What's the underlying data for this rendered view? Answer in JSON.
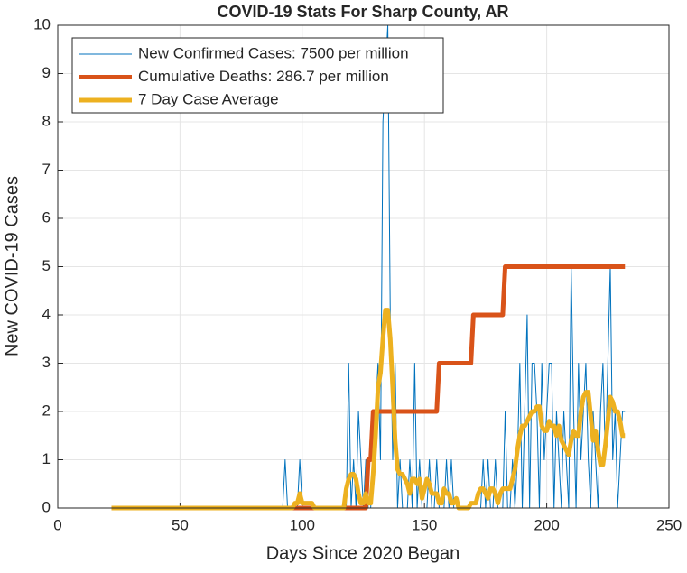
{
  "chart_data": {
    "type": "line",
    "title": "COVID-19 Stats For Sharp County, AR",
    "xlabel": "Days Since 2020 Began",
    "ylabel": "New COVID-19 Cases",
    "xlim": [
      0,
      250
    ],
    "xticks": [
      0,
      50,
      100,
      150,
      200,
      250
    ],
    "ylim": [
      0,
      10
    ],
    "yticks": [
      0,
      1,
      2,
      3,
      4,
      5,
      6,
      7,
      8,
      9,
      10
    ],
    "grid": true,
    "legend": "northwest",
    "x": [
      22,
      23,
      24,
      25,
      26,
      27,
      28,
      29,
      30,
      31,
      32,
      33,
      34,
      35,
      36,
      37,
      38,
      39,
      40,
      41,
      42,
      43,
      44,
      45,
      46,
      47,
      48,
      49,
      50,
      51,
      52,
      53,
      54,
      55,
      56,
      57,
      58,
      59,
      60,
      61,
      62,
      63,
      64,
      65,
      66,
      67,
      68,
      69,
      70,
      71,
      72,
      73,
      74,
      75,
      76,
      77,
      78,
      79,
      80,
      81,
      82,
      83,
      84,
      85,
      86,
      87,
      88,
      89,
      90,
      91,
      92,
      93,
      94,
      95,
      96,
      97,
      98,
      99,
      100,
      101,
      102,
      103,
      104,
      105,
      106,
      107,
      108,
      109,
      110,
      111,
      112,
      113,
      114,
      115,
      116,
      117,
      118,
      119,
      120,
      121,
      122,
      123,
      124,
      125,
      126,
      127,
      128,
      129,
      130,
      131,
      132,
      133,
      134,
      135,
      136,
      137,
      138,
      139,
      140,
      141,
      142,
      143,
      144,
      145,
      146,
      147,
      148,
      149,
      150,
      151,
      152,
      153,
      154,
      155,
      156,
      157,
      158,
      159,
      160,
      161,
      162,
      163,
      164,
      165,
      166,
      167,
      168,
      169,
      170,
      171,
      172,
      173,
      174,
      175,
      176,
      177,
      178,
      179,
      180,
      181,
      182,
      183,
      184,
      185,
      186,
      187,
      188,
      189,
      190,
      191,
      192,
      193,
      194,
      195,
      196,
      197,
      198,
      199,
      200,
      201,
      202,
      203,
      204,
      205,
      206,
      207,
      208,
      209,
      210,
      211,
      212,
      213,
      214,
      215,
      216,
      217,
      218,
      219,
      220,
      221,
      222,
      223,
      224,
      225,
      226,
      227,
      228,
      229,
      230,
      231,
      232
    ],
    "series": [
      {
        "name": "New Confirmed Cases: 7500 per million",
        "color": "#0072BD",
        "width": 1,
        "values": [
          0,
          0,
          0,
          0,
          0,
          0,
          0,
          0,
          0,
          0,
          0,
          0,
          0,
          0,
          0,
          0,
          0,
          0,
          0,
          0,
          0,
          0,
          0,
          0,
          0,
          0,
          0,
          0,
          0,
          0,
          0,
          0,
          0,
          0,
          0,
          0,
          0,
          0,
          0,
          0,
          0,
          0,
          0,
          0,
          0,
          0,
          0,
          0,
          0,
          0,
          0,
          0,
          0,
          0,
          0,
          0,
          0,
          0,
          0,
          0,
          0,
          0,
          0,
          0,
          0,
          0,
          0,
          0,
          0,
          0,
          0,
          1,
          0,
          0,
          0,
          0,
          0,
          1,
          0,
          0,
          0,
          0,
          0,
          0,
          0,
          0,
          0,
          0,
          0,
          0,
          0,
          0,
          0,
          0,
          0,
          0,
          0,
          3,
          0,
          1,
          0,
          2,
          1,
          0,
          1,
          0,
          0,
          1,
          2,
          3,
          1,
          8,
          9,
          10,
          4,
          1,
          3,
          0,
          1,
          0,
          0,
          0,
          1,
          0,
          3,
          0,
          1,
          0,
          0,
          0,
          1,
          0,
          0,
          1,
          0,
          0,
          0,
          1,
          0,
          1,
          0,
          0,
          0,
          0,
          0,
          0,
          0,
          0,
          0,
          0,
          0,
          0,
          1,
          0,
          1,
          0,
          0,
          1,
          0,
          0,
          0,
          2,
          0,
          0,
          1,
          0,
          1,
          3,
          0,
          2,
          4,
          0,
          3,
          3,
          2,
          0,
          3,
          1,
          2,
          3,
          3,
          0,
          2,
          1,
          0,
          2,
          1,
          0,
          5,
          2,
          0,
          3,
          1,
          2,
          3,
          1,
          0,
          2,
          1,
          0,
          2,
          3,
          1,
          3,
          5,
          1,
          2,
          0,
          1,
          2,
          2
        ]
      },
      {
        "name": "Cumulative Deaths: 286.7 per million",
        "color": "#D95319",
        "width": 5,
        "values": [
          0,
          0,
          0,
          0,
          0,
          0,
          0,
          0,
          0,
          0,
          0,
          0,
          0,
          0,
          0,
          0,
          0,
          0,
          0,
          0,
          0,
          0,
          0,
          0,
          0,
          0,
          0,
          0,
          0,
          0,
          0,
          0,
          0,
          0,
          0,
          0,
          0,
          0,
          0,
          0,
          0,
          0,
          0,
          0,
          0,
          0,
          0,
          0,
          0,
          0,
          0,
          0,
          0,
          0,
          0,
          0,
          0,
          0,
          0,
          0,
          0,
          0,
          0,
          0,
          0,
          0,
          0,
          0,
          0,
          0,
          0,
          0,
          0,
          0,
          0,
          0,
          0,
          0,
          0,
          0,
          0,
          0,
          0,
          0,
          0,
          0,
          0,
          0,
          0,
          0,
          0,
          0,
          0,
          0,
          0,
          0,
          0,
          0,
          0,
          0,
          0,
          0,
          0,
          0,
          0,
          1,
          1,
          2,
          2,
          2,
          2,
          2,
          2,
          2,
          2,
          2,
          2,
          2,
          2,
          2,
          2,
          2,
          2,
          2,
          2,
          2,
          2,
          2,
          2,
          2,
          2,
          2,
          2,
          2,
          3,
          3,
          3,
          3,
          3,
          3,
          3,
          3,
          3,
          3,
          3,
          3,
          3,
          3,
          4,
          4,
          4,
          4,
          4,
          4,
          4,
          4,
          4,
          4,
          4,
          4,
          4,
          5,
          5,
          5,
          5,
          5,
          5,
          5,
          5,
          5,
          5,
          5,
          5,
          5,
          5,
          5,
          5,
          5,
          5,
          5,
          5,
          5,
          5,
          5,
          5,
          5,
          5,
          5,
          5,
          5,
          5,
          5,
          5,
          5,
          5,
          5,
          5,
          5,
          5,
          5,
          5,
          5,
          5,
          5,
          5,
          5,
          5,
          5,
          5,
          5,
          5
        ]
      },
      {
        "name": "7 Day Case Average",
        "color": "#EDB120",
        "width": 5,
        "values": [
          0,
          0,
          0,
          0,
          0,
          0,
          0,
          0,
          0,
          0,
          0,
          0,
          0,
          0,
          0,
          0,
          0,
          0,
          0,
          0,
          0,
          0,
          0,
          0,
          0,
          0,
          0,
          0,
          0,
          0,
          0,
          0,
          0,
          0,
          0,
          0,
          0,
          0,
          0,
          0,
          0,
          0,
          0,
          0,
          0,
          0,
          0,
          0,
          0,
          0,
          0,
          0,
          0,
          0,
          0,
          0,
          0,
          0,
          0,
          0,
          0,
          0,
          0,
          0,
          0,
          0,
          0,
          0,
          0,
          0,
          0,
          0,
          0,
          0,
          0,
          0.1,
          0.1,
          0.3,
          0.1,
          0.1,
          0.1,
          0.1,
          0.1,
          0,
          0,
          0,
          0,
          0,
          0,
          0,
          0,
          0,
          0,
          0,
          0,
          0,
          0.4,
          0.6,
          0.7,
          0.7,
          0.6,
          0.3,
          0.1,
          0.1,
          0.3,
          0.1,
          0.1,
          0.7,
          1.5,
          2.5,
          2.8,
          3.5,
          4.1,
          4.1,
          3.5,
          2.5,
          1.4,
          0.8,
          0.7,
          0.7,
          0.6,
          0.5,
          0.3,
          0.6,
          0.6,
          0.5,
          0.6,
          0.2,
          0.4,
          0.6,
          0.5,
          0.3,
          0.3,
          0.3,
          0.1,
          0.1,
          0.4,
          0.3,
          0.3,
          0.1,
          0.1,
          0.2,
          0,
          0,
          0,
          0,
          0,
          0.1,
          0.1,
          0.1,
          0.3,
          0.4,
          0.4,
          0.3,
          0.2,
          0.4,
          0.4,
          0.3,
          0.1,
          0.3,
          0.4,
          0.4,
          0.4,
          0.4,
          0.6,
          0.8,
          1.2,
          1.5,
          1.7,
          1.7,
          1.8,
          1.9,
          2.0,
          2.0,
          2.1,
          2.1,
          1.7,
          1.6,
          1.6,
          1.8,
          1.7,
          1.7,
          1.5,
          1.7,
          1.4,
          1.3,
          1.2,
          1.1,
          1.4,
          1.6,
          1.5,
          1.5,
          2.0,
          2.3,
          2.4,
          2.4,
          1.9,
          1.4,
          1.6,
          1.2,
          0.9,
          0.9,
          1.3,
          1.8,
          2.3,
          2.2,
          2.0,
          2.0,
          1.8,
          1.5,
          1.5
        ]
      }
    ]
  }
}
